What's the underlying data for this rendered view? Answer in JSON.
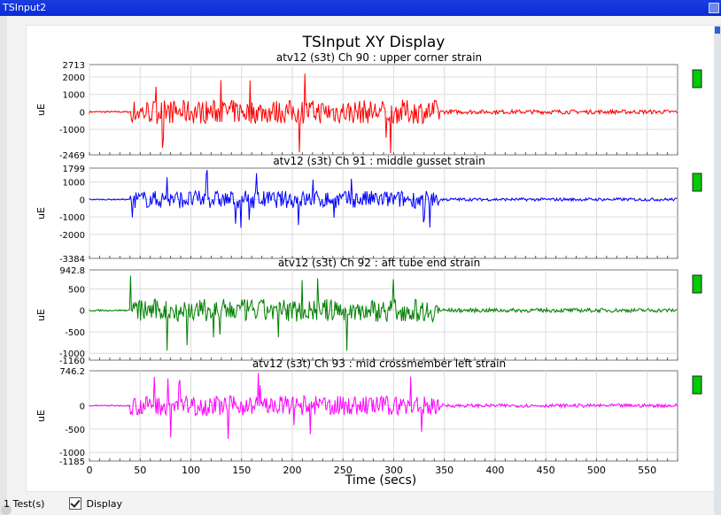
{
  "window": {
    "title": "TSInput2"
  },
  "display": {
    "title": "TSInput XY Display",
    "xlabel": "Time (secs)"
  },
  "x_ticks": [
    "0",
    "50",
    "100",
    "150",
    "200",
    "250",
    "300",
    "350",
    "400",
    "450",
    "500",
    "550"
  ],
  "colors": {
    "ch90": "#ff0000",
    "ch91": "#0000ff",
    "ch92": "#008000",
    "ch93": "#ff00ff",
    "indicator": "#00cc00"
  },
  "chart_data": [
    {
      "type": "line",
      "title": "atv12 (s3t)  Ch 90 : upper corner strain",
      "ylabel": "uE",
      "ylim": [
        -2469,
        2713
      ],
      "ytick_labels": [
        "2713",
        "2000",
        "1000",
        "0",
        "-1000",
        "-2469"
      ],
      "xlim": [
        0,
        580
      ],
      "series": [
        {
          "name": "",
          "color": "#ff0000"
        }
      ]
    },
    {
      "type": "line",
      "title": "atv12 (s3t)  Ch 91 : middle gusset strain",
      "ylabel": "uE",
      "ylim": [
        -3384,
        1799
      ],
      "ytick_labels": [
        "1799",
        "1000",
        "0",
        "-1000",
        "-2000",
        "-3384"
      ],
      "xlim": [
        0,
        580
      ],
      "series": [
        {
          "name": "",
          "color": "#0000ff"
        }
      ]
    },
    {
      "type": "line",
      "title": "atv12 (s3t)  Ch 92 : aft tube end strain",
      "ylabel": "uE",
      "ylim": [
        -1160,
        942.8
      ],
      "ytick_labels": [
        "942.8",
        "500",
        "0",
        "-500",
        "-1000",
        "-1160"
      ],
      "xlim": [
        0,
        580
      ],
      "series": [
        {
          "name": "",
          "color": "#008000"
        }
      ]
    },
    {
      "type": "line",
      "title": "atv12 (s3t)  Ch 93 : mid crossmember left strain",
      "ylabel": "uE",
      "ylim": [
        -1185,
        746.2
      ],
      "ytick_labels": [
        "746.2",
        "0",
        "-500",
        "-1000",
        "-1185"
      ],
      "xlim": [
        0,
        580
      ],
      "series": [
        {
          "name": "",
          "color": "#ff00ff"
        }
      ]
    }
  ],
  "footer": {
    "tests": "1 Test(s)",
    "display_label": "Display"
  }
}
